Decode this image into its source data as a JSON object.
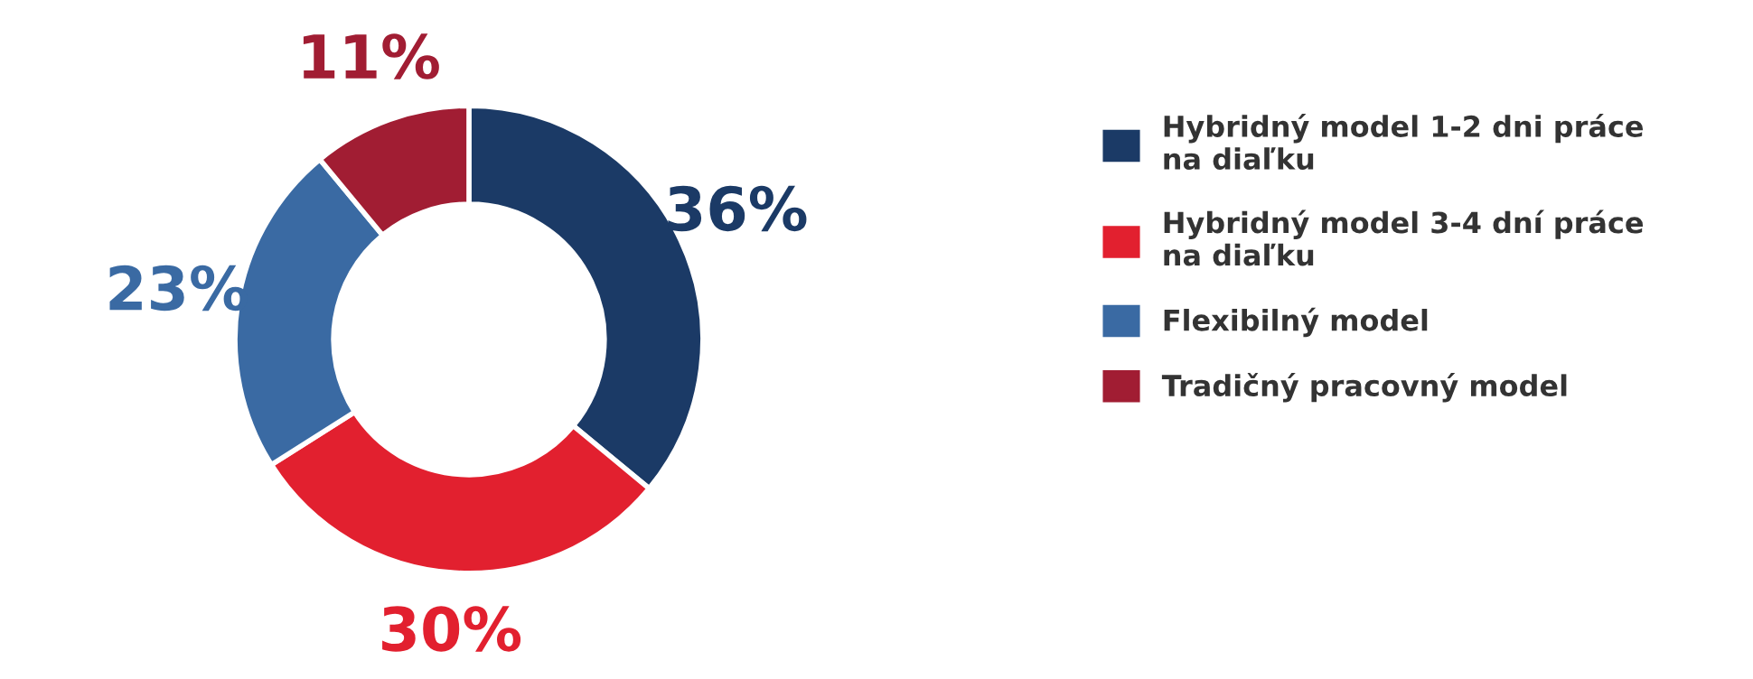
{
  "chart_data": {
    "type": "donut",
    "categories": [
      "Hybridný model 1-2 dni práce na diaľku",
      "Hybridný model 3-4 dní práce na diaľku",
      "Flexibilný model",
      "Tradičný pracovný model"
    ],
    "values": [
      36,
      30,
      23,
      11
    ],
    "colors": [
      "#1b3a66",
      "#e2202f",
      "#3a6aa3",
      "#a11d33"
    ],
    "value_labels": [
      "36%",
      "30%",
      "23%",
      "11%"
    ],
    "legend": "right"
  }
}
